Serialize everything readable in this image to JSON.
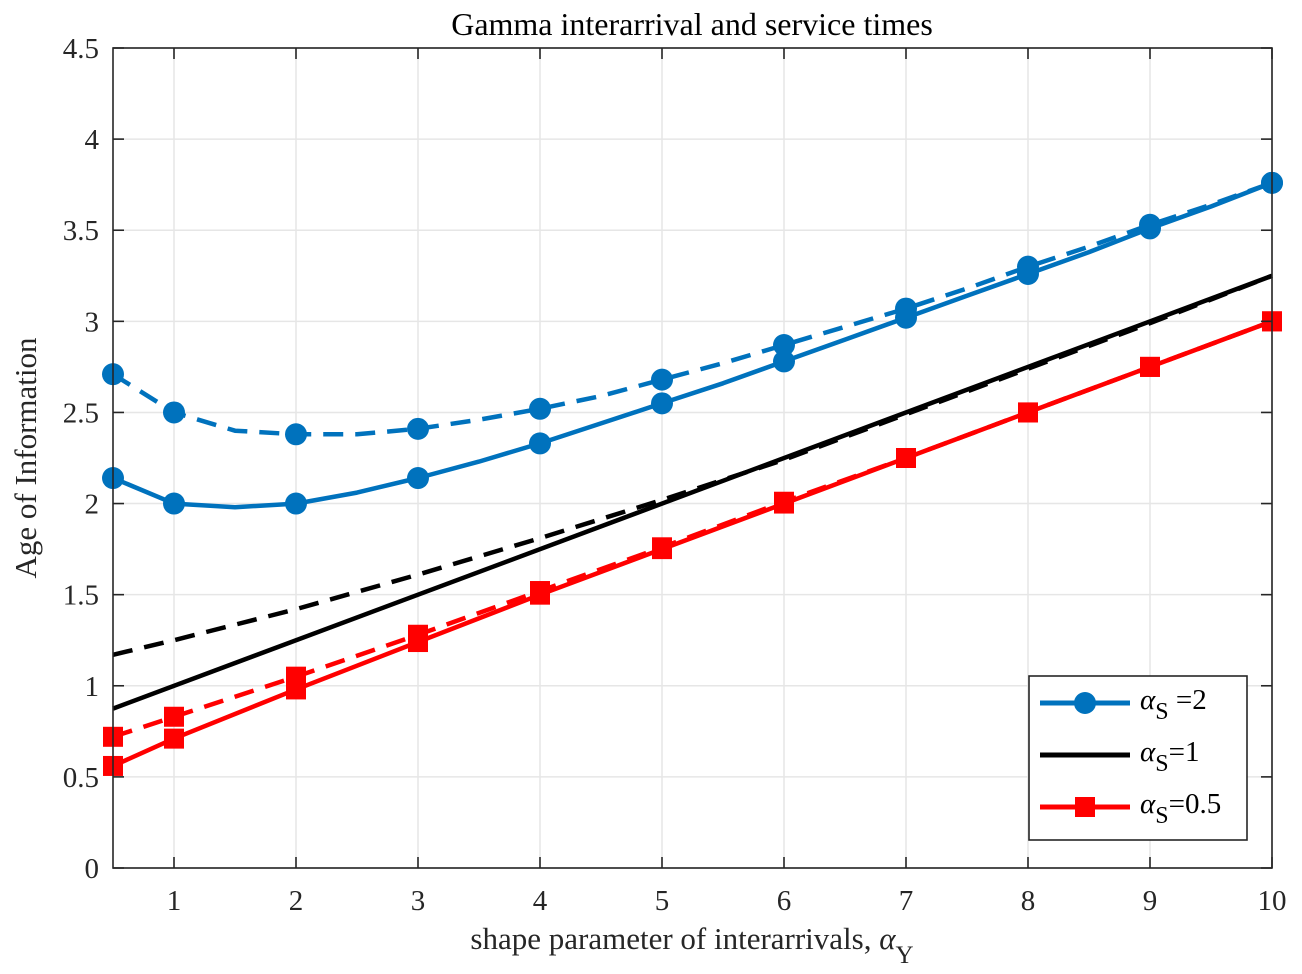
{
  "chart_data": {
    "type": "line",
    "title": "Gamma interarrival and service times",
    "xlabel": {
      "text": "shape parameter of interarrivals, ",
      "symbol": "α",
      "subscript": "Y"
    },
    "ylabel": "Age of Information",
    "xlim": [
      0.5,
      10
    ],
    "ylim": [
      0,
      4.5
    ],
    "xticks": [
      1,
      2,
      3,
      4,
      5,
      6,
      7,
      8,
      9,
      10
    ],
    "xtick_labels": [
      "1",
      "2",
      "3",
      "4",
      "5",
      "6",
      "7",
      "8",
      "9",
      "10"
    ],
    "yticks": [
      0,
      0.5,
      1,
      1.5,
      2,
      2.5,
      3,
      3.5,
      4,
      4.5
    ],
    "ytick_labels": [
      "0",
      "0.5",
      "1",
      "1.5",
      "2",
      "2.5",
      "3",
      "3.5",
      "4",
      "4.5"
    ],
    "grid": true,
    "legend_position": "bottom-right",
    "series": [
      {
        "legend_symbol": "α",
        "legend_subscript": "S",
        "legend_suffix": " =2",
        "color": "#0072BD",
        "style": "solid",
        "marker": "circle",
        "x": [
          0.5,
          1,
          1.5,
          2,
          2.5,
          3,
          3.5,
          4,
          4.5,
          5,
          5.5,
          6,
          6.5,
          7,
          7.5,
          8,
          8.5,
          9,
          9.5,
          10
        ],
        "y": [
          2.14,
          2.0,
          1.98,
          2.0,
          2.06,
          2.14,
          2.23,
          2.33,
          2.44,
          2.55,
          2.66,
          2.78,
          2.9,
          3.02,
          3.14,
          3.26,
          3.38,
          3.51,
          3.63,
          3.76
        ],
        "marker_x": [
          0.5,
          1,
          2,
          3,
          4,
          5,
          6,
          7,
          8,
          9,
          10
        ]
      },
      {
        "color": "#0072BD",
        "style": "dashed",
        "marker": "circle",
        "x": [
          0.5,
          1,
          1.5,
          2,
          2.5,
          3,
          3.5,
          4,
          4.5,
          5,
          5.5,
          6,
          6.5,
          7,
          7.5,
          8,
          8.5,
          9,
          9.5,
          10
        ],
        "y": [
          2.71,
          2.5,
          2.4,
          2.38,
          2.38,
          2.41,
          2.46,
          2.52,
          2.59,
          2.68,
          2.77,
          2.87,
          2.97,
          3.07,
          3.18,
          3.3,
          3.41,
          3.53,
          3.64,
          3.76
        ],
        "marker_x": [
          0.5,
          1,
          2,
          3,
          4,
          5,
          6,
          7,
          8,
          9,
          10
        ]
      },
      {
        "legend_symbol": "α",
        "legend_subscript": "S",
        "legend_suffix": "=1",
        "color": "#000000",
        "style": "solid",
        "marker": "none",
        "x": [
          0.5,
          10
        ],
        "y": [
          0.875,
          3.25
        ]
      },
      {
        "color": "#000000",
        "style": "dashed",
        "marker": "none",
        "x": [
          0.5,
          1,
          2,
          3,
          4,
          5,
          6,
          7,
          8,
          9,
          10
        ],
        "y": [
          1.17,
          1.25,
          1.42,
          1.61,
          1.81,
          2.02,
          2.24,
          2.49,
          2.74,
          2.99,
          3.25
        ]
      },
      {
        "legend_symbol": "α",
        "legend_subscript": "S",
        "legend_suffix": "=0.5",
        "color": "#FF0000",
        "style": "solid",
        "marker": "square",
        "x": [
          0.5,
          1,
          2,
          3,
          4,
          5,
          6,
          7,
          8,
          9,
          10
        ],
        "y": [
          0.56,
          0.71,
          0.98,
          1.24,
          1.5,
          1.75,
          2.0,
          2.25,
          2.5,
          2.75,
          3.0
        ],
        "marker_x": [
          0.5,
          1,
          2,
          3,
          4,
          5,
          6,
          7,
          8,
          9,
          10
        ]
      },
      {
        "color": "#FF0000",
        "style": "dashed",
        "marker": "square",
        "x": [
          0.5,
          1,
          2,
          3,
          4,
          5,
          6,
          7,
          8,
          9,
          10
        ],
        "y": [
          0.72,
          0.83,
          1.05,
          1.28,
          1.52,
          1.76,
          2.01,
          2.25,
          2.5,
          2.75,
          3.0
        ],
        "marker_x": [
          0.5,
          1,
          2,
          3,
          4,
          5,
          6,
          7,
          8,
          9,
          10
        ]
      }
    ]
  }
}
